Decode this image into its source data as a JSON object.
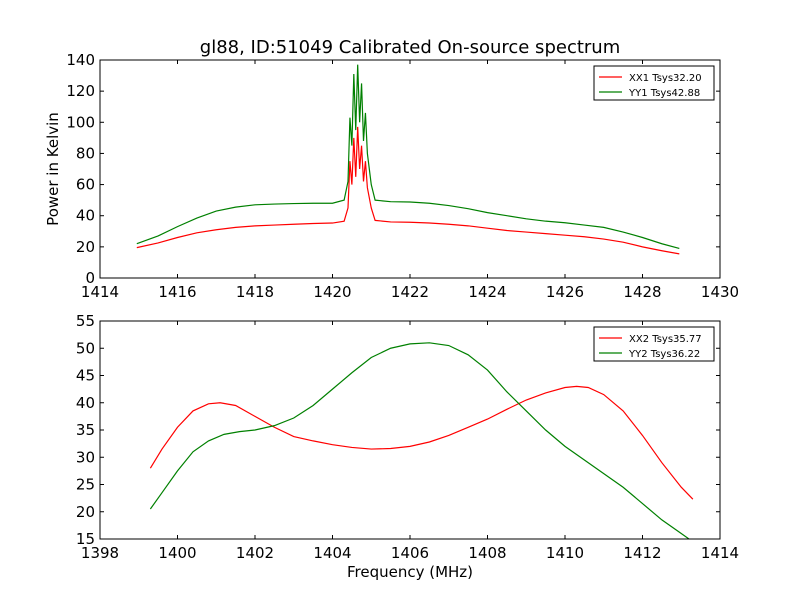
{
  "title": "gl88, ID:51049 Calibrated On-source spectrum",
  "chart_data": [
    {
      "type": "line",
      "title": "gl88, ID:51049 Calibrated On-source spectrum",
      "xlabel": "",
      "ylabel": "Power in Kelvin",
      "xlim": [
        1414,
        1430
      ],
      "ylim": [
        0,
        140
      ],
      "xticks": [
        1414,
        1416,
        1418,
        1420,
        1422,
        1424,
        1426,
        1428,
        1430
      ],
      "yticks": [
        0,
        20,
        40,
        60,
        80,
        100,
        120,
        140
      ],
      "grid": false,
      "legend": "top-right",
      "series": [
        {
          "name": "XX1 Tsys32.20",
          "color": "#ff0000",
          "x": [
            1414.95,
            1415.5,
            1416.0,
            1416.5,
            1417.0,
            1417.5,
            1418.0,
            1418.5,
            1419.0,
            1419.5,
            1420.0,
            1420.3,
            1420.4,
            1420.45,
            1420.5,
            1420.55,
            1420.6,
            1420.65,
            1420.7,
            1420.75,
            1420.8,
            1420.85,
            1420.9,
            1421.0,
            1421.1,
            1421.5,
            1422.0,
            1422.5,
            1423.0,
            1423.5,
            1424.0,
            1424.5,
            1425.0,
            1425.5,
            1426.0,
            1426.5,
            1427.0,
            1427.5,
            1428.0,
            1428.5,
            1428.95
          ],
          "y": [
            19.5,
            22.5,
            26,
            29,
            31,
            32.5,
            33.5,
            34,
            34.5,
            35,
            35.3,
            36.5,
            45,
            75,
            60,
            90,
            65,
            97,
            70,
            85,
            62,
            75,
            58,
            45,
            37,
            36,
            35.8,
            35.3,
            34.5,
            33.5,
            32,
            30.5,
            29.5,
            28.5,
            27.5,
            26.5,
            25,
            23,
            20,
            17.5,
            15.5
          ]
        },
        {
          "name": "YY1 Tsys42.88",
          "color": "#008000",
          "x": [
            1414.95,
            1415.5,
            1416.0,
            1416.5,
            1417.0,
            1417.5,
            1418.0,
            1418.5,
            1419.0,
            1419.5,
            1420.0,
            1420.3,
            1420.4,
            1420.45,
            1420.5,
            1420.55,
            1420.6,
            1420.65,
            1420.7,
            1420.75,
            1420.8,
            1420.85,
            1420.9,
            1421.0,
            1421.1,
            1421.5,
            1422.0,
            1422.5,
            1423.0,
            1423.5,
            1424.0,
            1424.5,
            1425.0,
            1425.5,
            1426.0,
            1426.5,
            1427.0,
            1427.5,
            1428.0,
            1428.5,
            1428.95
          ],
          "y": [
            22,
            27,
            33,
            38.5,
            43,
            45.5,
            47,
            47.5,
            47.8,
            48,
            48,
            50,
            62,
            103,
            85,
            131,
            95,
            137,
            100,
            125,
            88,
            106,
            80,
            60,
            50,
            49,
            48.8,
            48,
            46.5,
            44.5,
            42,
            40,
            38,
            36.5,
            35.5,
            34,
            32.5,
            29.5,
            26,
            22,
            19
          ]
        }
      ]
    },
    {
      "type": "line",
      "title": "",
      "xlabel": "Frequency (MHz)",
      "ylabel": "",
      "xlim": [
        1398,
        1414
      ],
      "ylim": [
        15,
        55
      ],
      "xticks": [
        1398,
        1400,
        1402,
        1404,
        1406,
        1408,
        1410,
        1412,
        1414
      ],
      "yticks": [
        15,
        20,
        25,
        30,
        35,
        40,
        45,
        50,
        55
      ],
      "grid": false,
      "legend": "top-right",
      "series": [
        {
          "name": "XX2 Tsys35.77",
          "color": "#ff0000",
          "x": [
            1399.3,
            1399.6,
            1400.0,
            1400.4,
            1400.8,
            1401.1,
            1401.5,
            1402.0,
            1402.5,
            1403.0,
            1403.5,
            1404.0,
            1404.5,
            1405.0,
            1405.5,
            1406.0,
            1406.5,
            1407.0,
            1407.5,
            1408.0,
            1408.5,
            1409.0,
            1409.5,
            1410.0,
            1410.3,
            1410.6,
            1411.0,
            1411.5,
            1412.0,
            1412.5,
            1413.0,
            1413.3
          ],
          "y": [
            28,
            31.5,
            35.5,
            38.5,
            39.8,
            40,
            39.5,
            37.5,
            35.5,
            33.8,
            33,
            32.3,
            31.8,
            31.5,
            31.6,
            32,
            32.8,
            34,
            35.5,
            37,
            38.8,
            40.5,
            41.8,
            42.8,
            43,
            42.8,
            41.5,
            38.5,
            34,
            29,
            24.5,
            22.3
          ]
        },
        {
          "name": "YY2 Tsys36.22",
          "color": "#008000",
          "x": [
            1399.3,
            1399.6,
            1400.0,
            1400.4,
            1400.8,
            1401.2,
            1401.6,
            1402.0,
            1402.5,
            1403.0,
            1403.5,
            1404.0,
            1404.5,
            1405.0,
            1405.5,
            1406.0,
            1406.5,
            1407.0,
            1407.5,
            1408.0,
            1408.5,
            1409.0,
            1409.5,
            1410.0,
            1410.5,
            1411.0,
            1411.5,
            1412.0,
            1412.5,
            1413.0,
            1413.3
          ],
          "y": [
            20.5,
            23.5,
            27.5,
            31,
            33,
            34.2,
            34.7,
            35,
            35.8,
            37.2,
            39.5,
            42.5,
            45.5,
            48.3,
            50,
            50.8,
            51,
            50.5,
            48.8,
            46,
            42,
            38.5,
            35,
            32,
            29.5,
            27,
            24.5,
            21.5,
            18.5,
            16,
            14.5
          ]
        }
      ]
    }
  ]
}
